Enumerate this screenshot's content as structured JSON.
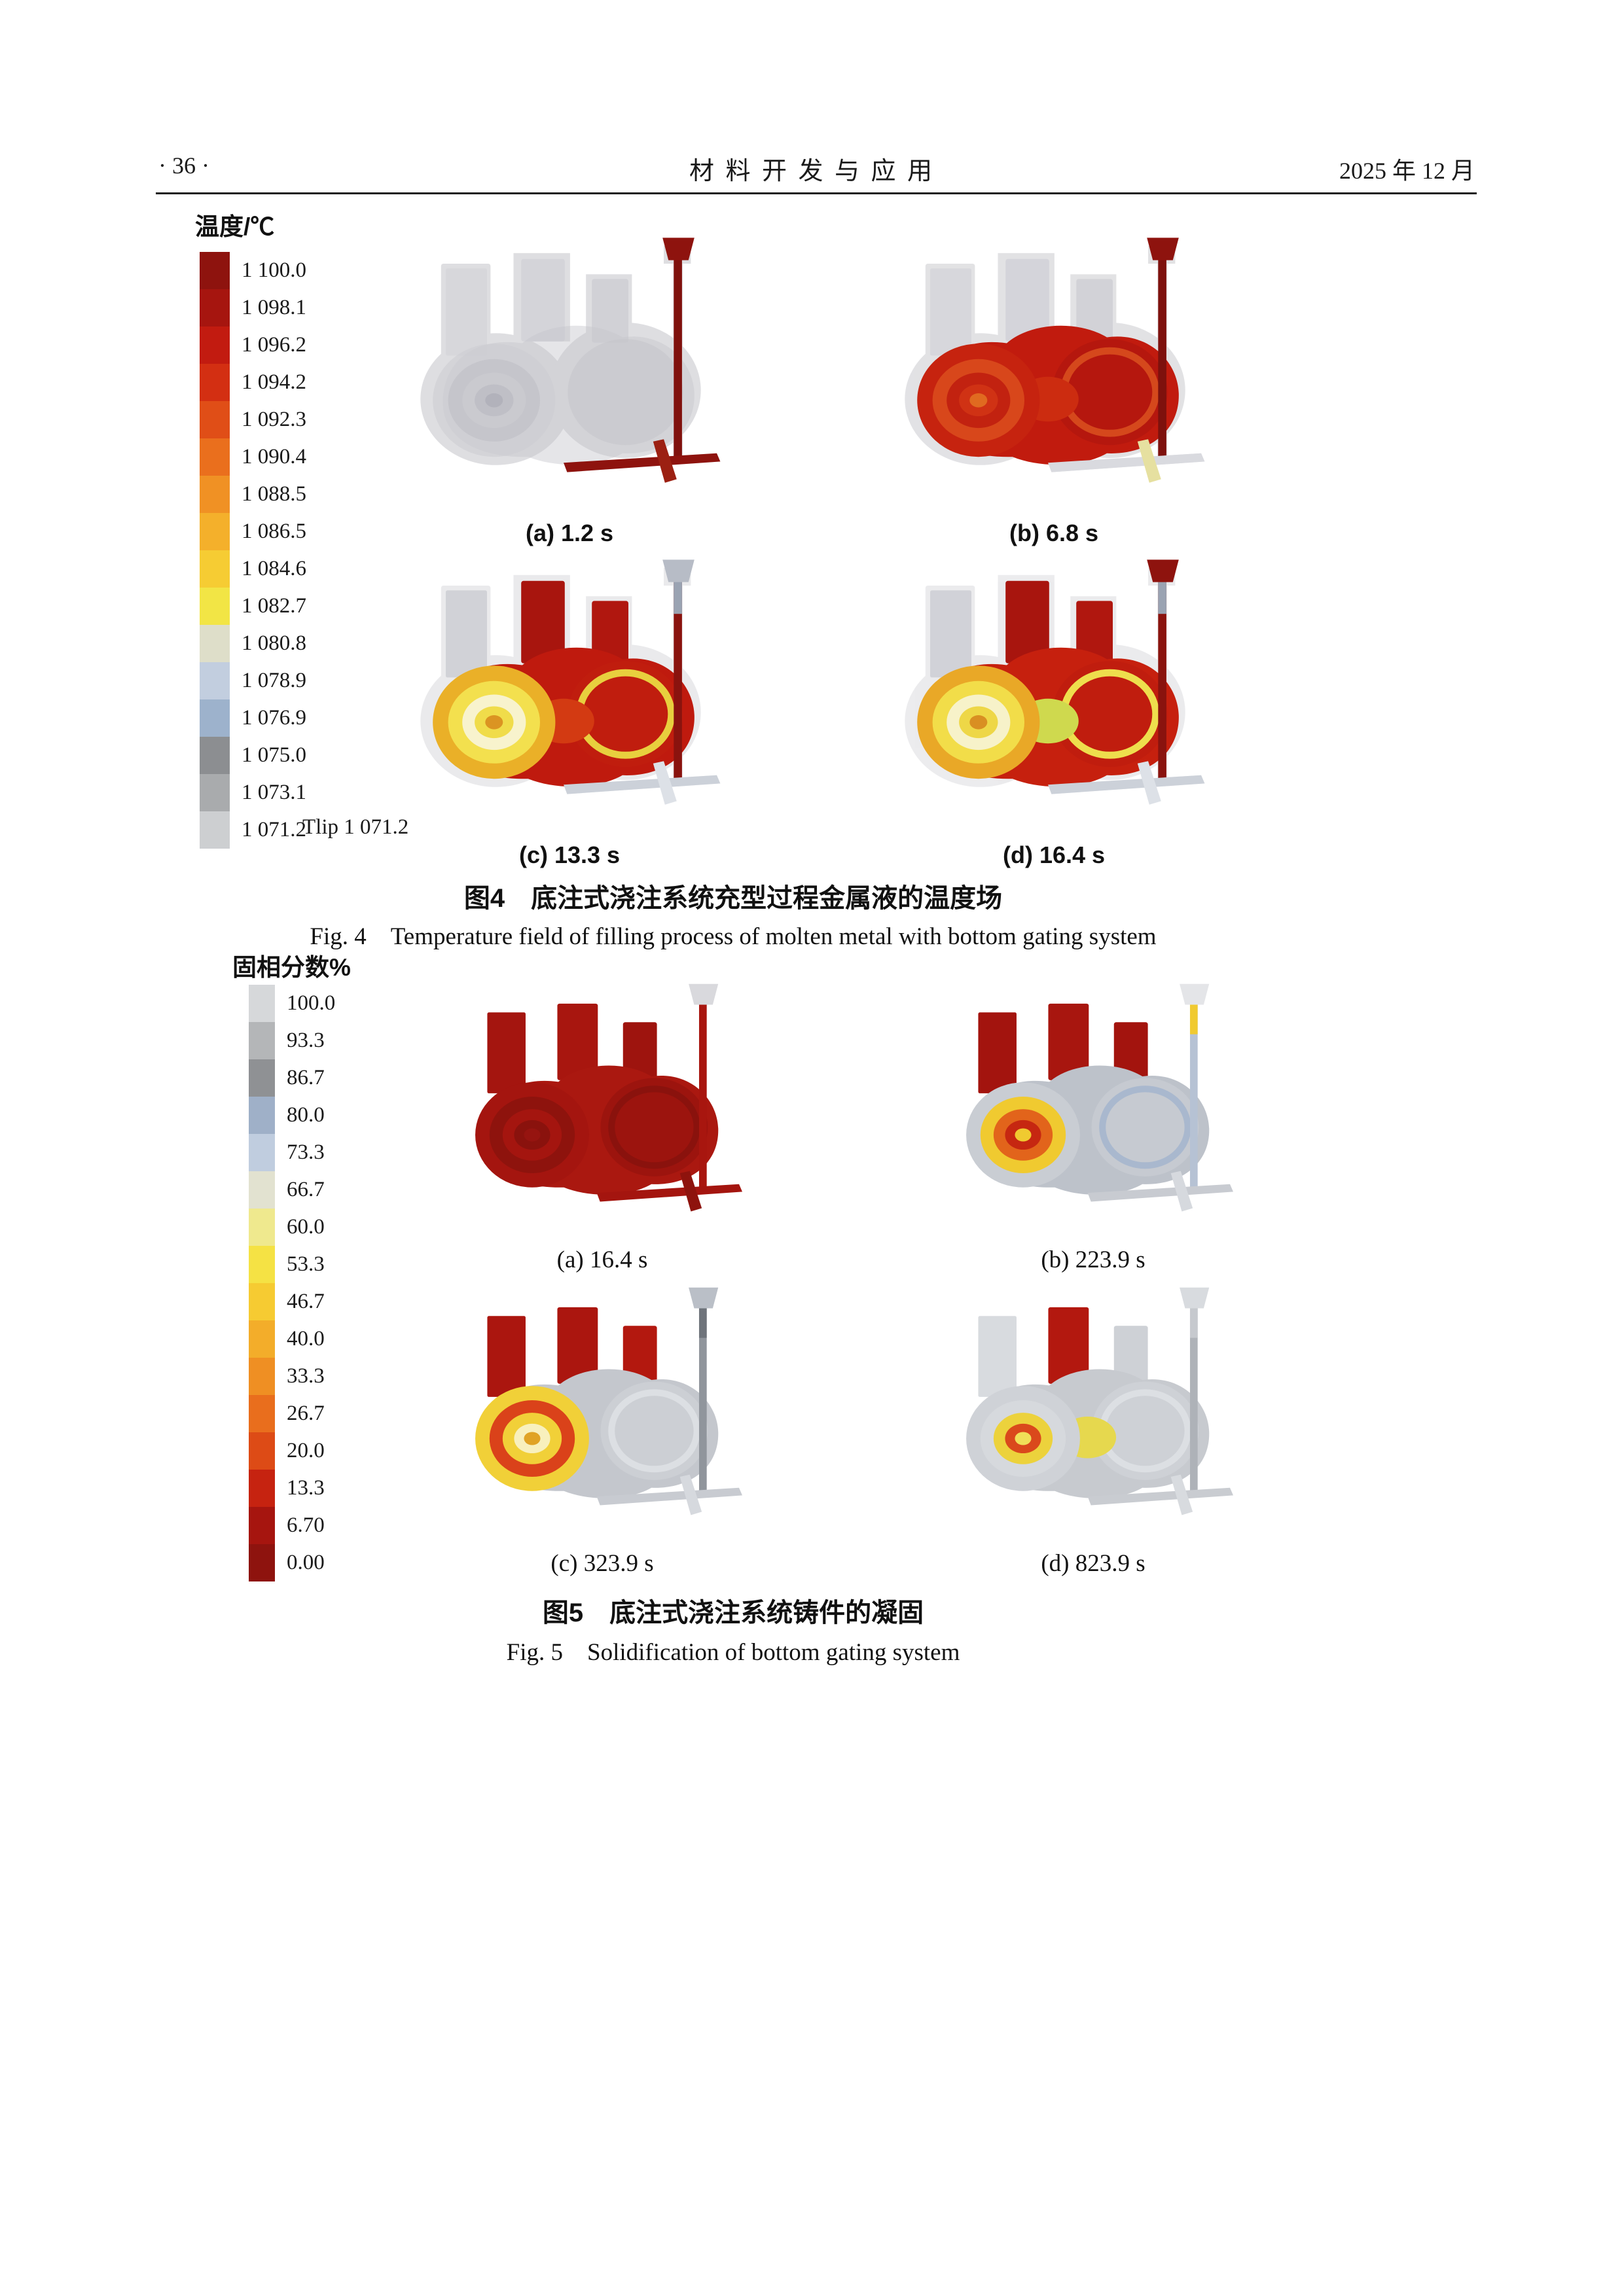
{
  "header": {
    "page_number": "· 36 ·",
    "journal_title": "材  料  开  发  与  应  用",
    "issue_date": "2025 年 12 月"
  },
  "figure4": {
    "legend_title": "温度/℃",
    "legend": [
      {
        "label": "1 100.0",
        "color": "#8e130e"
      },
      {
        "label": "1 098.1",
        "color": "#a6150f"
      },
      {
        "label": "1 096.2",
        "color": "#c21b10"
      },
      {
        "label": "1 094.2",
        "color": "#d32f12"
      },
      {
        "label": "1 092.3",
        "color": "#e04e17"
      },
      {
        "label": "1 090.4",
        "color": "#ea6f1d"
      },
      {
        "label": "1 088.5",
        "color": "#f09124"
      },
      {
        "label": "1 086.5",
        "color": "#f4b02b"
      },
      {
        "label": "1 084.6",
        "color": "#f6cc33"
      },
      {
        "label": "1 082.7",
        "color": "#f2e545"
      },
      {
        "label": "1 080.8",
        "color": "#dedec9"
      },
      {
        "label": "1 078.9",
        "color": "#c2cedf"
      },
      {
        "label": "1 076.9",
        "color": "#9db2cc"
      },
      {
        "label": "1 075.0",
        "color": "#8c8e91"
      },
      {
        "label": "1 073.1",
        "color": "#a9abad"
      },
      {
        "label": "1 071.2",
        "color": "#cdcfd1"
      }
    ],
    "liquidus_note": "Tlip 1 071.2",
    "subfigures": [
      {
        "caption": "(a)  1.2 s"
      },
      {
        "caption": "(b)  6.8 s"
      },
      {
        "caption": "(c)  13.3 s"
      },
      {
        "caption": "(d)  16.4 s"
      }
    ],
    "caption_zh": "图4　底注式浇注系统充型过程金属液的温度场",
    "caption_en": "Fig. 4　Temperature field of filling process of molten metal with bottom gating system"
  },
  "figure5": {
    "legend_title": "固相分数%",
    "legend": [
      {
        "label": "100.0",
        "color": "#d6d8da"
      },
      {
        "label": "93.3",
        "color": "#b4b6b8"
      },
      {
        "label": "86.7",
        "color": "#8f9194"
      },
      {
        "label": "80.0",
        "color": "#9fb0c8"
      },
      {
        "label": "73.3",
        "color": "#c0cddf"
      },
      {
        "label": "66.7",
        "color": "#e2e2d0"
      },
      {
        "label": "60.0",
        "color": "#efe98e"
      },
      {
        "label": "53.3",
        "color": "#f5e244"
      },
      {
        "label": "46.7",
        "color": "#f6cb32"
      },
      {
        "label": "40.0",
        "color": "#f3ad2a"
      },
      {
        "label": "33.3",
        "color": "#ef8f23"
      },
      {
        "label": "26.7",
        "color": "#e96e1d"
      },
      {
        "label": "20.0",
        "color": "#dd4b16"
      },
      {
        "label": "13.3",
        "color": "#c62310"
      },
      {
        "label": "6.70",
        "color": "#a6150f"
      },
      {
        "label": "0.00",
        "color": "#8e130e"
      }
    ],
    "subfigures": [
      {
        "caption": "(a)  16.4 s"
      },
      {
        "caption": "(b)  223.9 s"
      },
      {
        "caption": "(c)  323.9 s"
      },
      {
        "caption": "(d)  823.9 s"
      }
    ],
    "caption_zh": "图5　底注式浇注系统铸件的凝固",
    "caption_en": "Fig. 5　Solidification of bottom gating system"
  }
}
